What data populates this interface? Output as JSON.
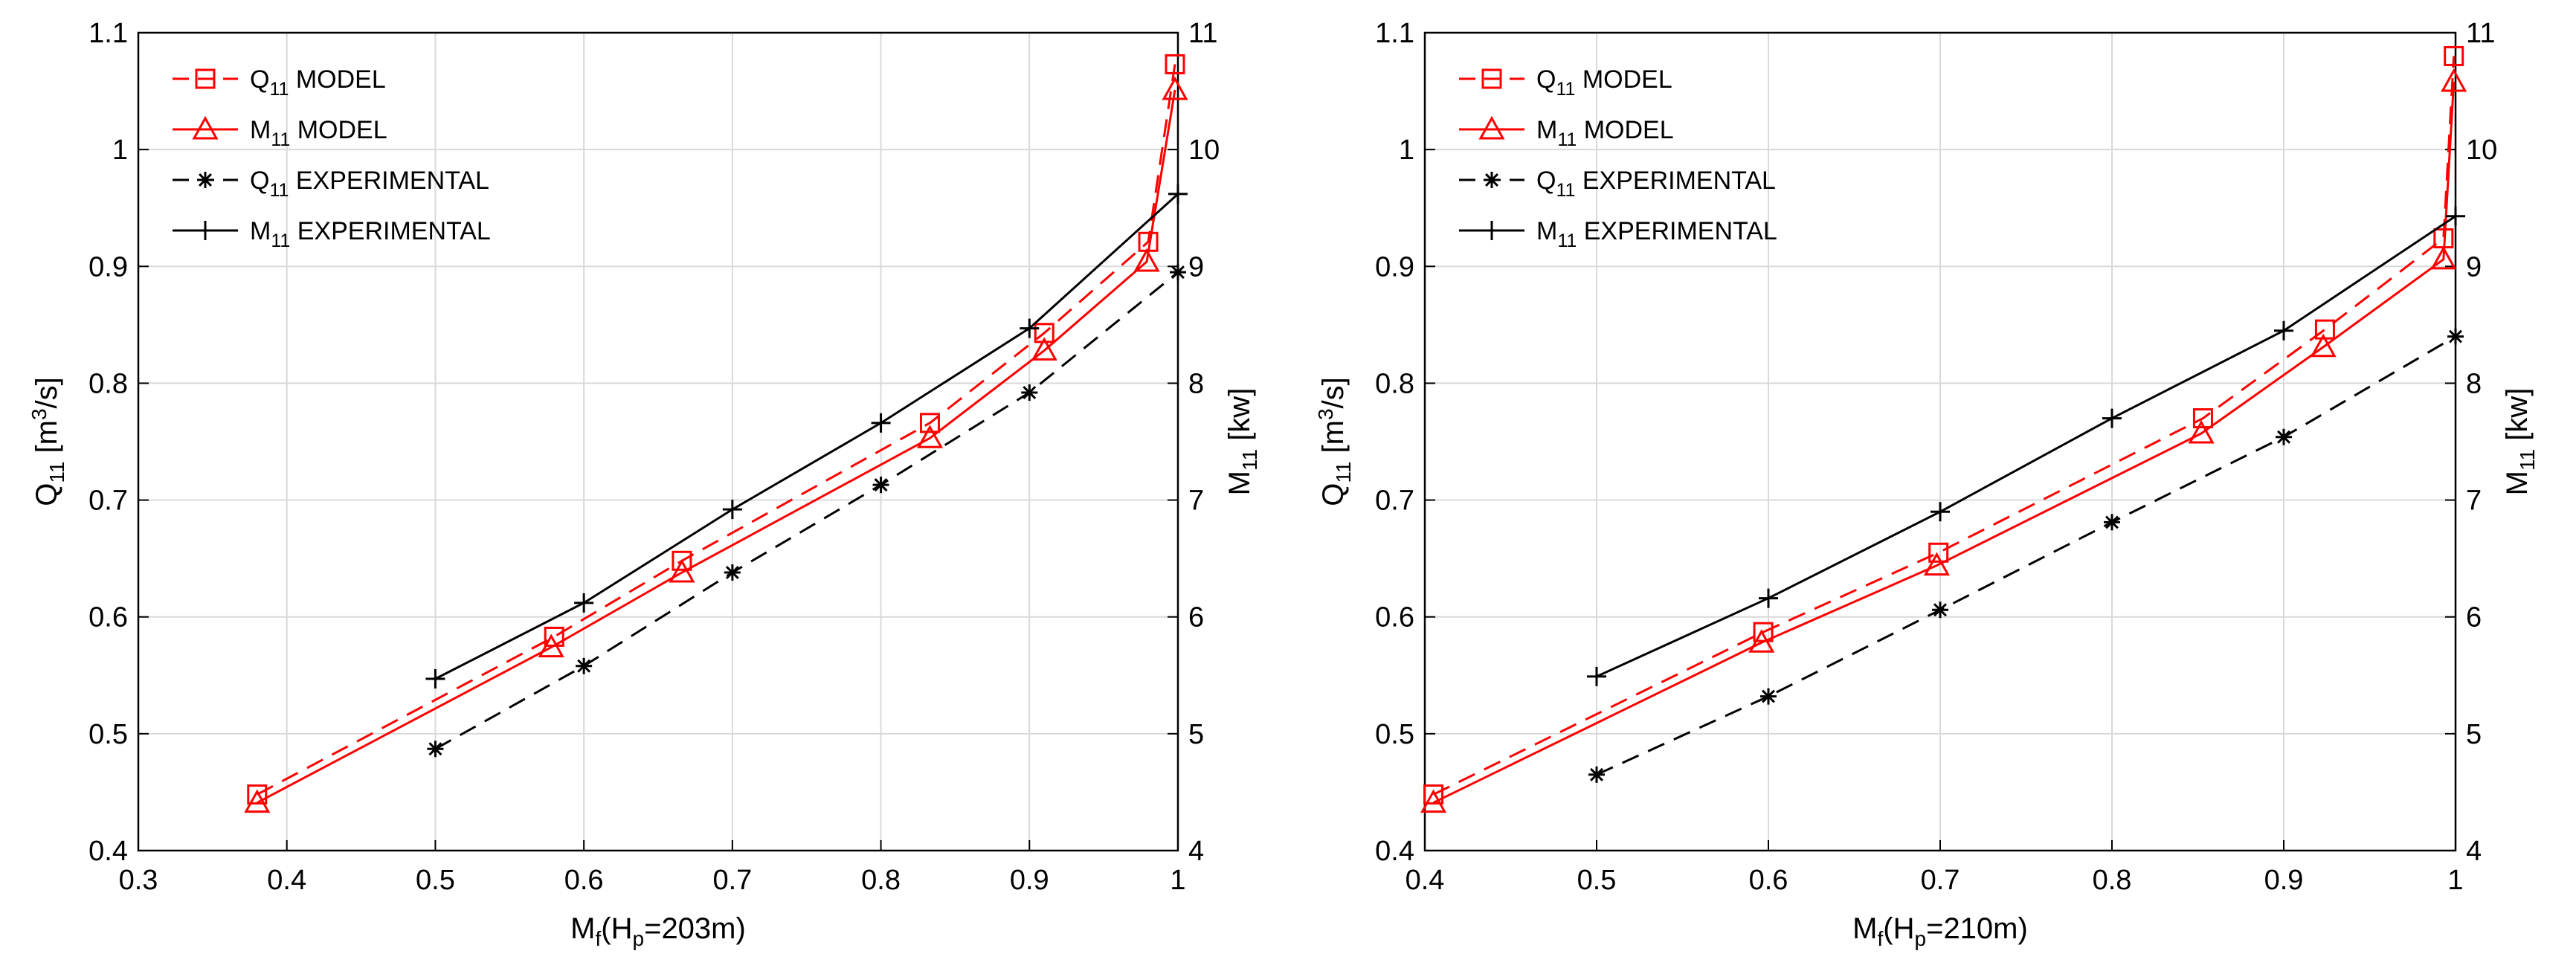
{
  "chart_data": [
    {
      "type": "line",
      "xlabel": "M",
      "xlabel_sub": "f",
      "xlabel_rest_open": "(H",
      "xlabel_rest_sub": "p",
      "xlabel_rest_close": "=203m)",
      "ylabel_left": "Q",
      "ylabel_left_sub": "11",
      "ylabel_left_unit_open": " [m",
      "ylabel_left_unit_sup": "3",
      "ylabel_left_unit_close": "/s]",
      "ylabel_right": "M",
      "ylabel_right_sub": "11",
      "ylabel_right_unit": " [kw]",
      "xlim": [
        0.3,
        1
      ],
      "ylim_left": [
        0.4,
        1.1
      ],
      "ylim_right": [
        4,
        11
      ],
      "xticks": [
        0.3,
        0.4,
        0.5,
        0.6,
        0.7,
        0.8,
        0.9,
        1
      ],
      "yticks_left": [
        0.4,
        0.5,
        0.6,
        0.7,
        0.8,
        0.9,
        1,
        1.1
      ],
      "yticks_right": [
        4,
        5,
        6,
        7,
        8,
        9,
        10,
        11
      ],
      "grid": true,
      "legend_position": "top-left",
      "series": [
        {
          "name": "Q",
          "name_sub": "11",
          "name_rest": " MODEL",
          "axis": "left",
          "color": "#ff0000",
          "dash": "dashed",
          "marker": "square",
          "x": [
            0.38,
            0.58,
            0.666,
            0.833,
            0.91,
            0.98,
            0.998
          ],
          "y": [
            0.448,
            0.583,
            0.648,
            0.766,
            0.843,
            0.921,
            1.073
          ]
        },
        {
          "name": "M",
          "name_sub": "11",
          "name_rest": " MODEL",
          "axis": "left",
          "color": "#ff0000",
          "dash": "solid",
          "marker": "triangle",
          "x": [
            0.38,
            0.578,
            0.666,
            0.833,
            0.91,
            0.979,
            0.998
          ],
          "y": [
            0.441,
            0.574,
            0.638,
            0.753,
            0.828,
            0.904,
            1.051
          ]
        },
        {
          "name": "Q",
          "name_sub": "11",
          "name_rest": " EXPERIMENTAL",
          "axis": "left",
          "color": "#000000",
          "dash": "dashed",
          "marker": "asterisk",
          "x": [
            0.5,
            0.6,
            0.7,
            0.8,
            0.9,
            1.0
          ],
          "y": [
            0.487,
            0.558,
            0.638,
            0.713,
            0.792,
            0.895
          ]
        },
        {
          "name": "M",
          "name_sub": "11",
          "name_rest": " EXPERIMENTAL",
          "axis": "left",
          "color": "#000000",
          "dash": "solid",
          "marker": "plus",
          "x": [
            0.5,
            0.6,
            0.7,
            0.8,
            0.9,
            1.0
          ],
          "y": [
            0.547,
            0.612,
            0.692,
            0.766,
            0.847,
            0.962
          ]
        }
      ]
    },
    {
      "type": "line",
      "xlabel": "M",
      "xlabel_sub": "f",
      "xlabel_rest_open": "(H",
      "xlabel_rest_sub": "p",
      "xlabel_rest_close": "=210m)",
      "ylabel_left": "Q",
      "ylabel_left_sub": "11",
      "ylabel_left_unit_open": " [m",
      "ylabel_left_unit_sup": "3",
      "ylabel_left_unit_close": "/s]",
      "ylabel_right": "M",
      "ylabel_right_sub": "11",
      "ylabel_right_unit": " [kw]",
      "xlim": [
        0.4,
        1
      ],
      "ylim_left": [
        0.4,
        1.1
      ],
      "ylim_right": [
        4,
        11
      ],
      "xticks": [
        0.4,
        0.5,
        0.6,
        0.7,
        0.8,
        0.9,
        1
      ],
      "yticks_left": [
        0.4,
        0.5,
        0.6,
        0.7,
        0.8,
        0.9,
        1,
        1.1
      ],
      "yticks_right": [
        4,
        5,
        6,
        7,
        8,
        9,
        10,
        11
      ],
      "grid": true,
      "legend_position": "top-left",
      "series": [
        {
          "name": "Q",
          "name_sub": "11",
          "name_rest": " MODEL",
          "axis": "left",
          "color": "#ff0000",
          "dash": "dashed",
          "marker": "square",
          "x": [
            0.405,
            0.597,
            0.699,
            0.853,
            0.924,
            0.993,
            0.999
          ],
          "y": [
            0.448,
            0.587,
            0.655,
            0.77,
            0.846,
            0.924,
            1.08
          ]
        },
        {
          "name": "M",
          "name_sub": "11",
          "name_rest": " MODEL",
          "axis": "left",
          "color": "#ff0000",
          "dash": "solid",
          "marker": "triangle",
          "x": [
            0.405,
            0.596,
            0.698,
            0.852,
            0.923,
            0.993,
            0.999
          ],
          "y": [
            0.441,
            0.578,
            0.644,
            0.757,
            0.831,
            0.906,
            1.058
          ]
        },
        {
          "name": "Q",
          "name_sub": "11",
          "name_rest": " EXPERIMENTAL",
          "axis": "left",
          "color": "#000000",
          "dash": "dashed",
          "marker": "asterisk",
          "x": [
            0.5,
            0.6,
            0.7,
            0.8,
            0.9,
            1.0
          ],
          "y": [
            0.465,
            0.532,
            0.606,
            0.681,
            0.754,
            0.84
          ]
        },
        {
          "name": "M",
          "name_sub": "11",
          "name_rest": " EXPERIMENTAL",
          "axis": "left",
          "color": "#000000",
          "dash": "solid",
          "marker": "plus",
          "x": [
            0.5,
            0.6,
            0.7,
            0.8,
            0.9,
            1.0
          ],
          "y": [
            0.549,
            0.616,
            0.69,
            0.77,
            0.845,
            0.943
          ]
        }
      ]
    }
  ]
}
